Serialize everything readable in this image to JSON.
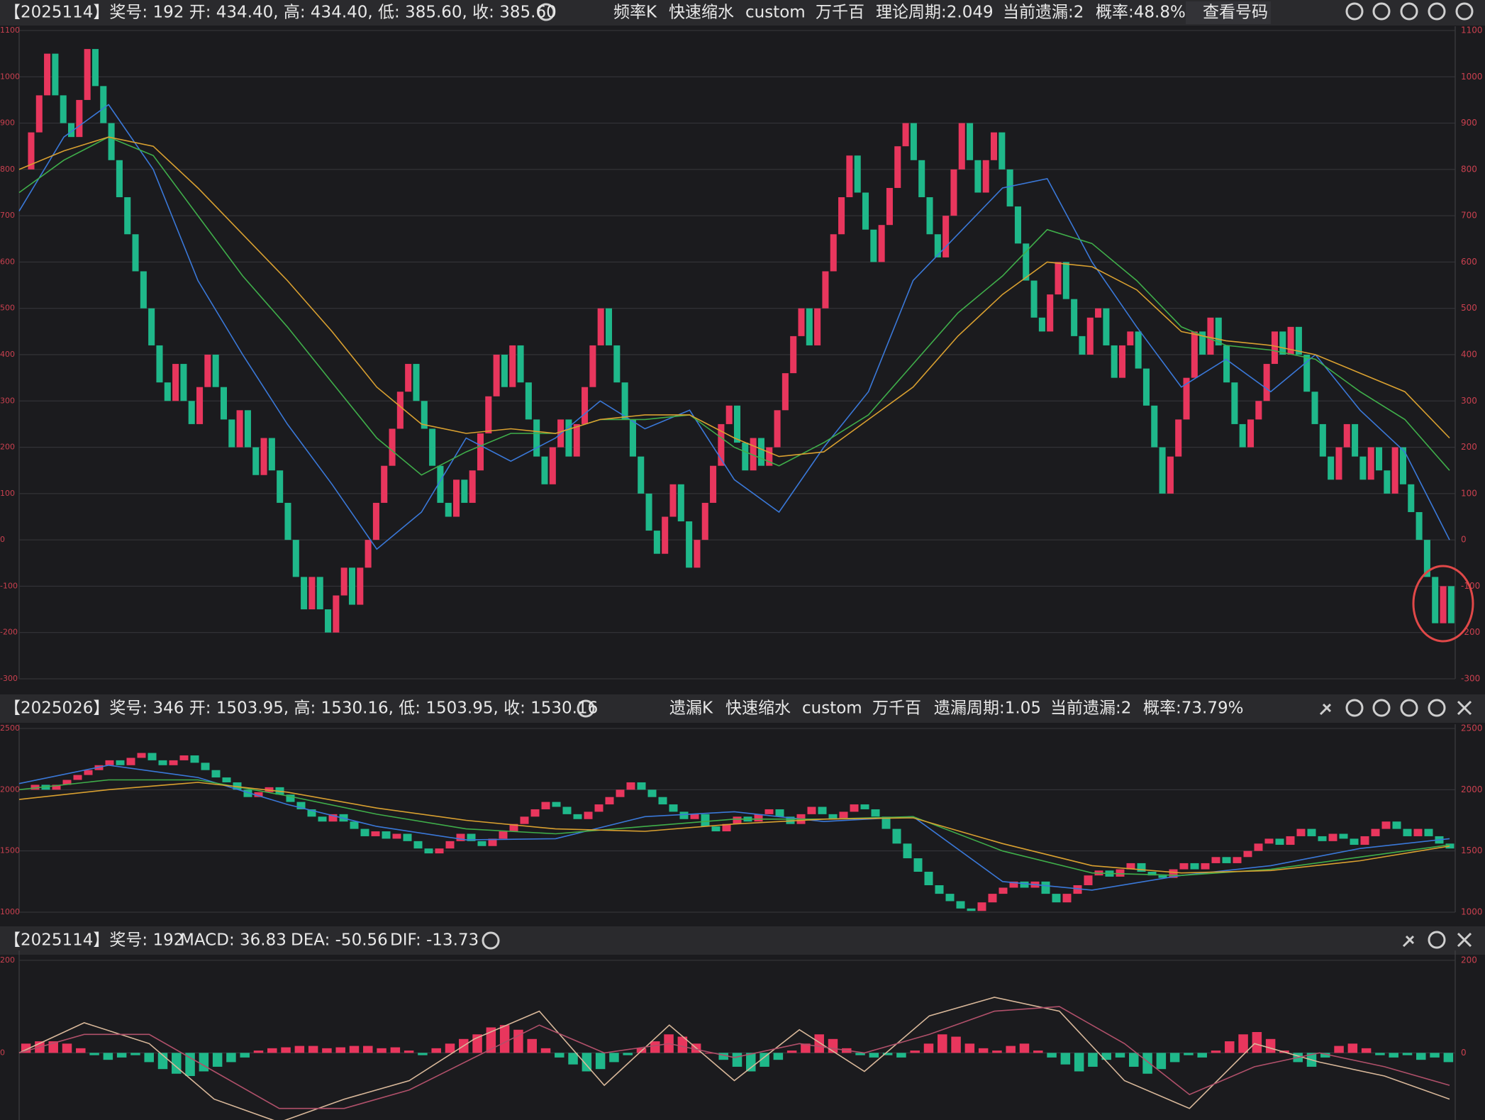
{
  "chart_data": [
    {
      "type": "renko",
      "header": [
        {
          "text": "【2025114】奖号: 192  开: 434.40, 高: 434.40, 低: 385.60, 收: 385.60"
        },
        {
          "text": "频率K"
        },
        {
          "text": "快速缩水"
        },
        {
          "text": "custom"
        },
        {
          "text": "万千百"
        },
        {
          "text": "理论周期:2.049"
        },
        {
          "text": "当前遗漏:2"
        },
        {
          "text": "概率:48.8%"
        },
        {
          "text": "查看号码"
        }
      ],
      "ylim": [
        -300,
        1100
      ],
      "yticks": [
        1100,
        1000,
        900,
        800,
        700,
        600,
        500,
        400,
        300,
        200,
        100,
        0,
        -100,
        -200,
        -300
      ],
      "up_color": "#e8365d",
      "down_color": "#1fb88a",
      "values": [
        800,
        880,
        960,
        1050,
        960,
        900,
        870,
        950,
        1060,
        980,
        900,
        820,
        740,
        660,
        580,
        500,
        420,
        340,
        300,
        380,
        300,
        250,
        330,
        400,
        330,
        260,
        200,
        280,
        200,
        140,
        220,
        150,
        80,
        0,
        -80,
        -150,
        -80,
        -150,
        -200,
        -120,
        -60,
        -140,
        -60,
        0,
        80,
        160,
        240,
        320,
        380,
        300,
        240,
        160,
        80,
        50,
        130,
        80,
        150,
        230,
        310,
        400,
        330,
        420,
        340,
        260,
        180,
        120,
        200,
        260,
        180,
        250,
        330,
        420,
        500,
        420,
        340,
        260,
        180,
        100,
        20,
        -30,
        50,
        120,
        40,
        -60,
        0,
        80,
        160,
        250,
        290,
        210,
        150,
        220,
        160,
        200,
        280,
        360,
        440,
        500,
        420,
        500,
        580,
        660,
        740,
        830,
        750,
        670,
        600,
        680,
        760,
        850,
        900,
        820,
        740,
        660,
        610,
        700,
        800,
        900,
        820,
        750,
        820,
        880,
        800,
        720,
        640,
        560,
        480,
        450,
        530,
        600,
        520,
        440,
        400,
        480,
        500,
        420,
        350,
        420,
        450,
        370,
        290,
        200,
        100,
        180,
        260,
        350,
        450,
        400,
        480,
        420,
        340,
        250,
        200,
        260,
        300,
        380,
        450,
        400,
        460,
        400,
        320,
        250,
        180,
        130,
        200,
        250,
        180,
        130,
        200,
        150,
        100,
        200,
        120,
        60,
        0,
        -80,
        -180,
        -100,
        -180
      ],
      "series": [
        {
          "color": "#3a78d8",
          "values": [
            710,
            870,
            940,
            800,
            560,
            400,
            250,
            120,
            -20,
            60,
            220,
            170,
            220,
            300,
            240,
            280,
            130,
            60,
            200,
            320,
            560,
            660,
            760,
            780,
            600,
            460,
            330,
            390,
            320,
            400,
            280,
            190,
            0
          ]
        },
        {
          "color": "#3fae4a",
          "values": [
            750,
            820,
            870,
            830,
            700,
            570,
            460,
            340,
            220,
            140,
            190,
            230,
            230,
            260,
            260,
            270,
            200,
            160,
            210,
            270,
            380,
            490,
            570,
            670,
            640,
            560,
            460,
            420,
            410,
            390,
            320,
            260,
            150
          ]
        },
        {
          "color": "#d9a030",
          "values": [
            800,
            840,
            870,
            850,
            760,
            660,
            560,
            450,
            330,
            250,
            230,
            240,
            230,
            260,
            270,
            270,
            220,
            180,
            190,
            260,
            330,
            440,
            530,
            600,
            590,
            540,
            450,
            430,
            420,
            400,
            360,
            320,
            220
          ]
        }
      ]
    },
    {
      "type": "renko",
      "header": [
        {
          "text": "【2025026】奖号: 346  开: 1503.95, 高: 1530.16, 低: 1503.95, 收: 1530.16"
        },
        {
          "text": "遗漏K"
        },
        {
          "text": "快速缩水"
        },
        {
          "text": "custom"
        },
        {
          "text": "万千百"
        },
        {
          "text": "遗漏周期:1.05"
        },
        {
          "text": "当前遗漏:2"
        },
        {
          "text": "概率:73.79%"
        }
      ],
      "ylim": [
        1000,
        2500
      ],
      "yticks": [
        2500,
        2000,
        1500,
        1000
      ],
      "up_color": "#e8365d",
      "down_color": "#1fb88a",
      "values": [
        2000,
        2040,
        2000,
        2040,
        2080,
        2120,
        2160,
        2200,
        2240,
        2200,
        2260,
        2300,
        2240,
        2200,
        2240,
        2280,
        2220,
        2160,
        2100,
        2060,
        2000,
        1940,
        1980,
        2020,
        1960,
        1900,
        1840,
        1780,
        1740,
        1800,
        1740,
        1680,
        1620,
        1660,
        1600,
        1640,
        1580,
        1520,
        1480,
        1520,
        1580,
        1640,
        1580,
        1540,
        1600,
        1660,
        1720,
        1780,
        1840,
        1900,
        1860,
        1800,
        1760,
        1820,
        1880,
        1940,
        2000,
        2060,
        2000,
        1940,
        1880,
        1820,
        1760,
        1800,
        1700,
        1660,
        1720,
        1780,
        1740,
        1800,
        1840,
        1780,
        1720,
        1800,
        1860,
        1800,
        1760,
        1820,
        1880,
        1840,
        1780,
        1680,
        1560,
        1440,
        1330,
        1220,
        1150,
        1090,
        1030,
        1010,
        1080,
        1150,
        1200,
        1250,
        1200,
        1250,
        1150,
        1080,
        1150,
        1220,
        1300,
        1340,
        1290,
        1350,
        1400,
        1330,
        1300,
        1280,
        1350,
        1400,
        1350,
        1400,
        1450,
        1400,
        1450,
        1500,
        1560,
        1600,
        1550,
        1620,
        1680,
        1620,
        1580,
        1640,
        1600,
        1550,
        1620,
        1680,
        1740,
        1680,
        1620,
        1680,
        1620,
        1560,
        1520
      ],
      "series": [
        {
          "color": "#3a78d8",
          "values": [
            2050,
            2200,
            2100,
            1880,
            1700,
            1590,
            1600,
            1780,
            1820,
            1740,
            1780,
            1250,
            1180,
            1300,
            1380,
            1520,
            1600
          ]
        },
        {
          "color": "#3fae4a",
          "values": [
            2000,
            2080,
            2080,
            1950,
            1800,
            1680,
            1640,
            1700,
            1760,
            1760,
            1780,
            1500,
            1320,
            1300,
            1350,
            1450,
            1550
          ]
        },
        {
          "color": "#d9a030",
          "values": [
            1920,
            2000,
            2060,
            1980,
            1850,
            1750,
            1680,
            1660,
            1720,
            1760,
            1770,
            1560,
            1380,
            1320,
            1340,
            1420,
            1540
          ]
        }
      ]
    },
    {
      "type": "macd",
      "header": [
        {
          "text": "【2025114】奖号: 192"
        },
        {
          "text": "MACD: 36.83",
          "color": "#e8365d"
        },
        {
          "text": "DEA: -50.56",
          "color": "#b0506a"
        },
        {
          "text": "DIF: -13.73",
          "color": "#d9b89a"
        }
      ],
      "ylim": [
        -145,
        212
      ],
      "yticks": [
        200,
        0
      ],
      "up_color": "#e8365d",
      "down_color": "#1fb88a",
      "values": [
        20,
        25,
        25,
        20,
        10,
        -5,
        -15,
        -10,
        -5,
        -20,
        -35,
        -45,
        -50,
        -40,
        -30,
        -20,
        -10,
        5,
        10,
        12,
        15,
        15,
        10,
        12,
        15,
        15,
        10,
        12,
        5,
        -5,
        10,
        20,
        30,
        40,
        55,
        60,
        50,
        30,
        10,
        -10,
        -25,
        -40,
        -35,
        -20,
        -5,
        10,
        25,
        40,
        35,
        20,
        0,
        -15,
        -30,
        -40,
        -30,
        -15,
        5,
        20,
        40,
        30,
        10,
        -5,
        -10,
        -5,
        -10,
        5,
        20,
        40,
        35,
        20,
        10,
        5,
        15,
        20,
        5,
        -10,
        -25,
        -40,
        -30,
        -15,
        -10,
        -30,
        -45,
        -35,
        -20,
        -5,
        -10,
        5,
        25,
        40,
        45,
        30,
        5,
        -20,
        -30,
        -10,
        15,
        20,
        10,
        -5,
        -10,
        -5,
        -15,
        -10,
        -20
      ],
      "series": [
        {
          "color": "#d9b89a",
          "values": [
            0,
            65,
            20,
            -100,
            -150,
            -100,
            -60,
            30,
            90,
            -70,
            60,
            -60,
            50,
            -40,
            80,
            120,
            90,
            -60,
            -120,
            20,
            -20,
            -50,
            -100
          ]
        },
        {
          "color": "#b0506a",
          "values": [
            0,
            40,
            40,
            -40,
            -120,
            -120,
            -80,
            -10,
            60,
            0,
            20,
            -10,
            20,
            0,
            40,
            90,
            100,
            20,
            -90,
            -30,
            0,
            -30,
            -70
          ]
        }
      ]
    }
  ]
}
